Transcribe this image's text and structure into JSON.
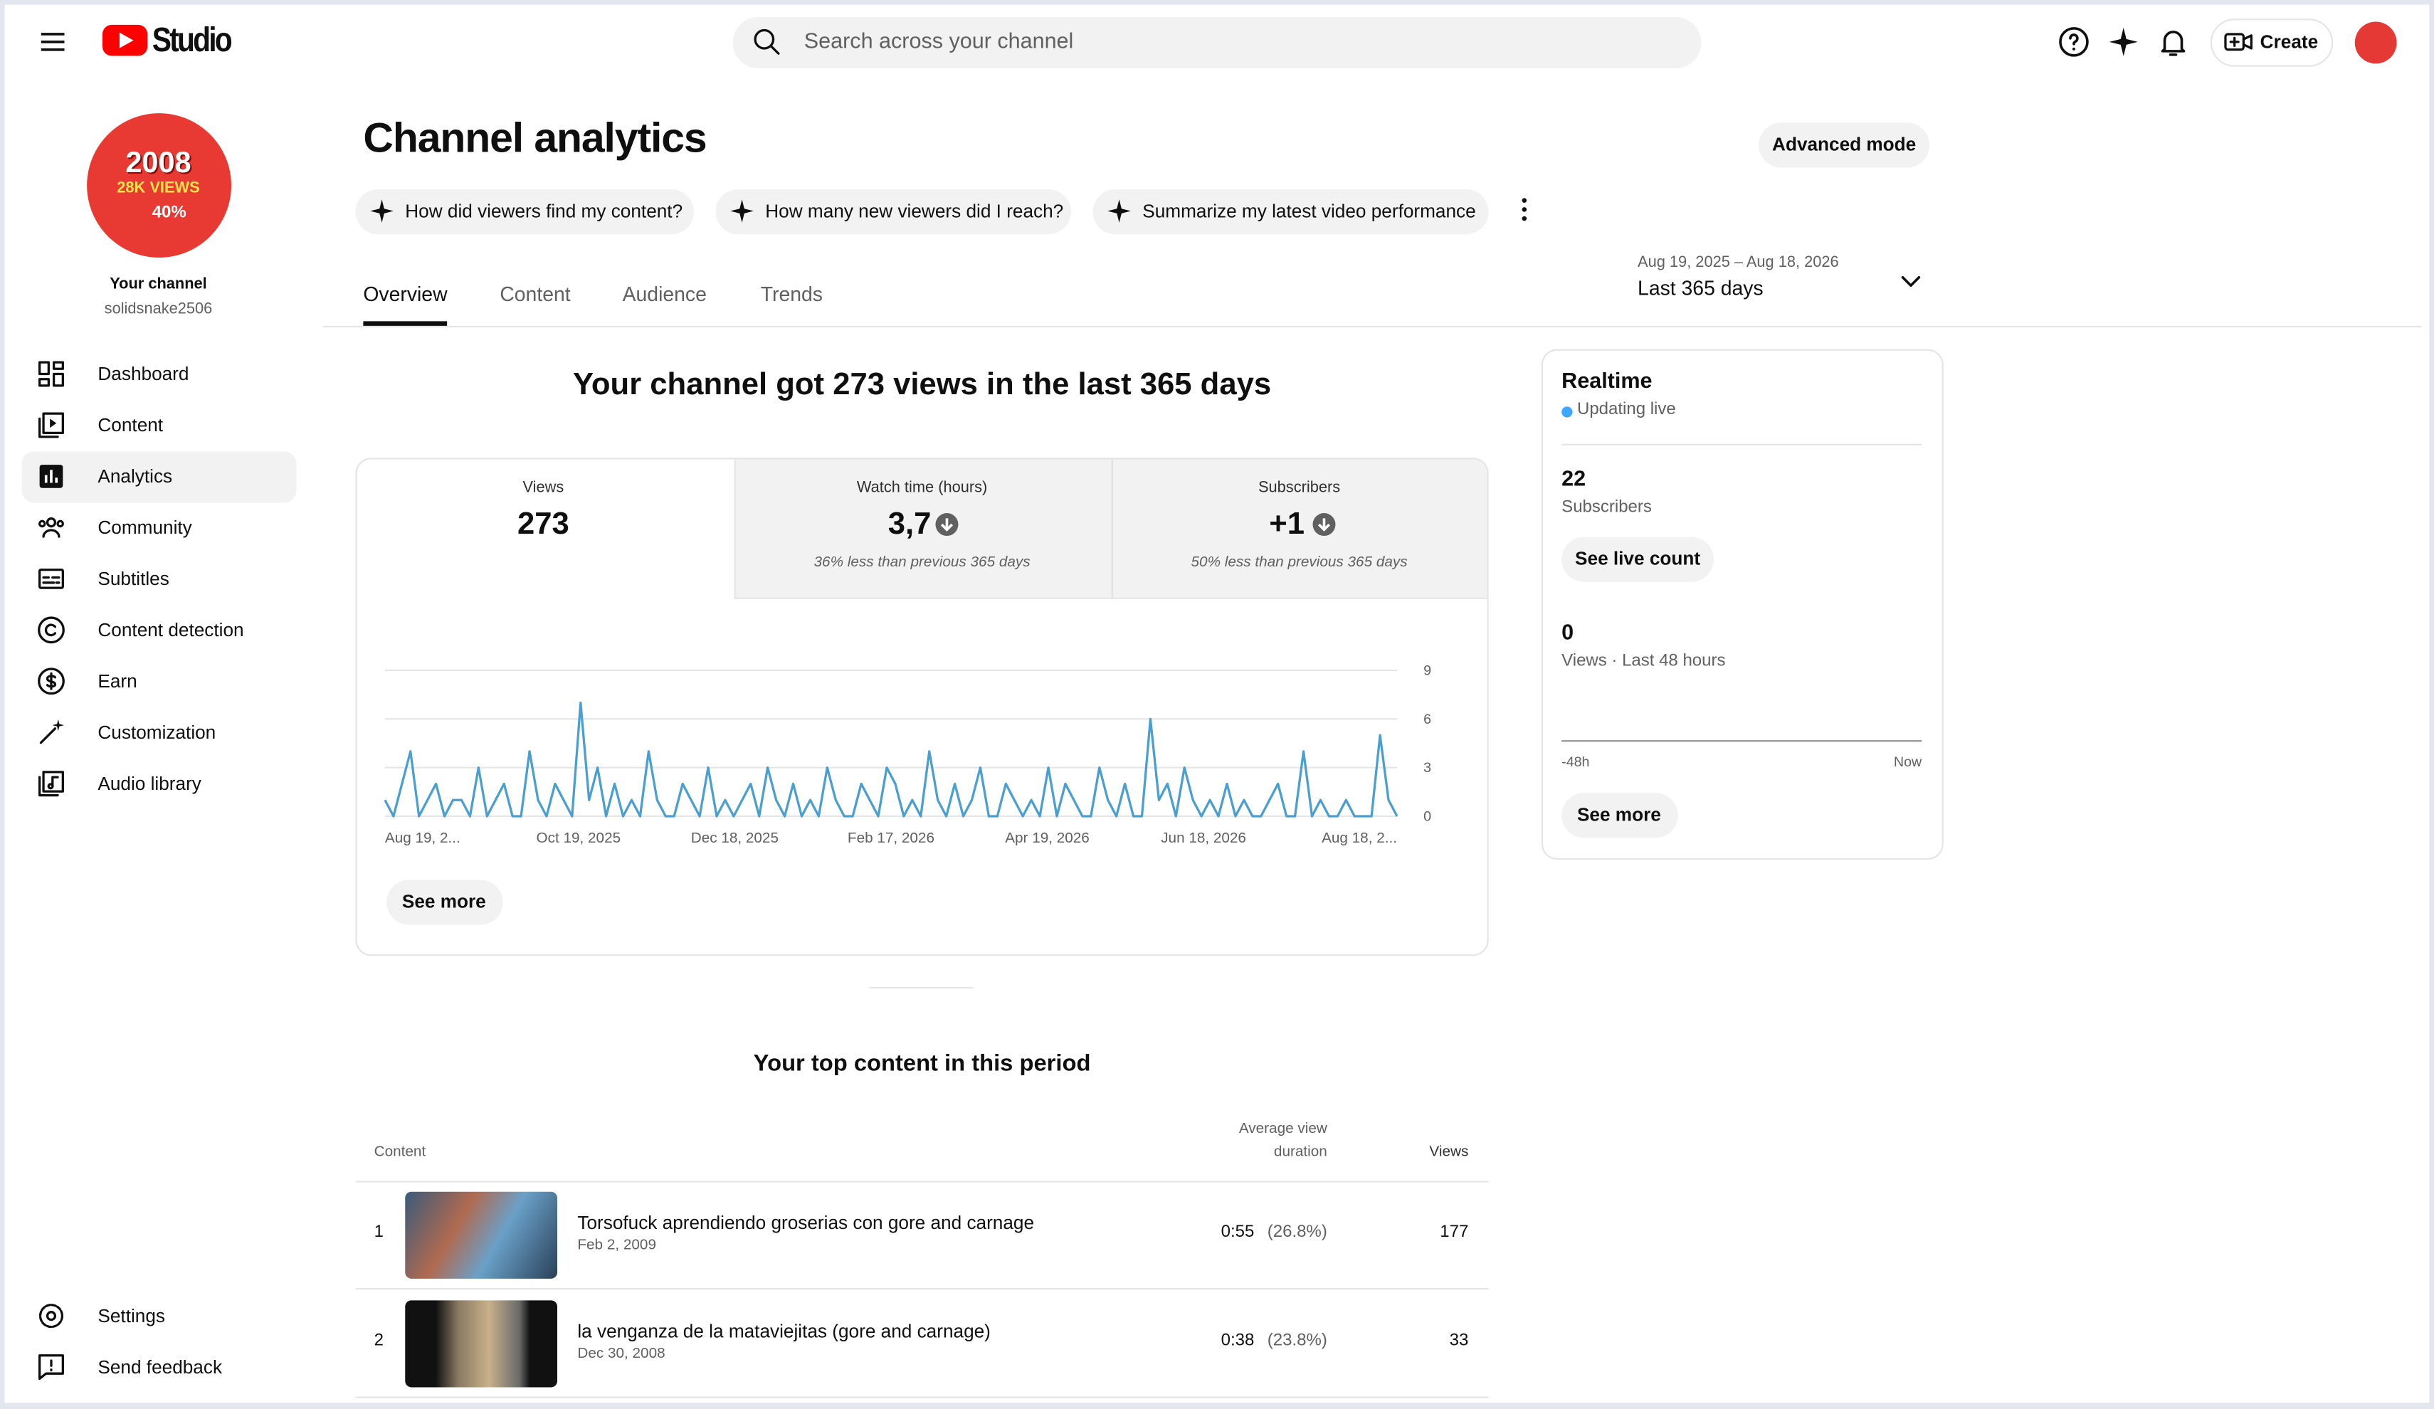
{
  "header": {
    "logo": "Studio",
    "search_placeholder": "Search across your channel",
    "create": "Create"
  },
  "sidebar": {
    "avatar": [
      "2008",
      "28K VIEWS",
      "40%"
    ],
    "channel_label": "Your channel",
    "channel_name": "solidsnake2506",
    "nav": [
      "Dashboard",
      "Content",
      "Analytics",
      "Community",
      "Subtitles",
      "Content detection",
      "Earn",
      "Customization",
      "Audio library"
    ],
    "bottom": [
      "Settings",
      "Send feedback"
    ]
  },
  "page": {
    "title": "Channel analytics",
    "advanced": "Advanced mode",
    "prompts": [
      "How did viewers find my content?",
      "How many new viewers did I reach?",
      "Summarize my latest video performance"
    ],
    "tabs": [
      "Overview",
      "Content",
      "Audience",
      "Trends"
    ],
    "date_range": "Aug 19, 2025 – Aug 18, 2026",
    "period": "Last 365 days"
  },
  "summary": {
    "headline": "Your channel got 273 views in the last 365 days",
    "cards": [
      {
        "label": "Views",
        "value": "273"
      },
      {
        "label": "Watch time (hours)",
        "value": "3,7",
        "note": "36% less than previous 365 days"
      },
      {
        "label": "Subscribers",
        "value": "+1",
        "note": "50% less than previous 365 days"
      }
    ],
    "see_more": "See more"
  },
  "chart_data": {
    "type": "line",
    "color": "#4a9fd0",
    "x_tick_labels": [
      "Aug 19, 2...",
      "Oct 19, 2025",
      "Dec 18, 2025",
      "Feb 17, 2026",
      "Apr 19, 2026",
      "Jun 18, 2026",
      "Aug 18, 2..."
    ],
    "values": [
      1,
      0,
      2,
      4,
      0,
      1,
      2,
      0,
      1,
      1,
      0,
      3,
      0,
      1,
      2,
      0,
      0,
      4,
      1,
      0,
      2,
      1,
      0,
      7,
      1,
      3,
      0,
      2,
      0,
      1,
      0,
      4,
      1,
      0,
      0,
      2,
      1,
      0,
      3,
      0,
      1,
      0,
      1,
      2,
      0,
      3,
      1,
      0,
      2,
      0,
      1,
      0,
      3,
      1,
      0,
      0,
      2,
      1,
      0,
      3,
      2,
      0,
      1,
      0,
      4,
      1,
      0,
      2,
      0,
      1,
      3,
      0,
      0,
      2,
      1,
      0,
      1,
      0,
      3,
      0,
      2,
      1,
      0,
      0,
      3,
      1,
      0,
      2,
      0,
      0,
      6,
      1,
      2,
      0,
      3,
      1,
      0,
      1,
      0,
      2,
      0,
      1,
      0,
      0,
      1,
      2,
      0,
      0,
      4,
      0,
      1,
      0,
      0,
      1,
      0,
      0,
      0,
      5,
      1,
      0
    ],
    "ylim": [
      0,
      9
    ],
    "yticks": [
      0,
      3,
      6,
      9
    ],
    "grid": true
  },
  "realtime": {
    "title": "Realtime",
    "status": "Updating live",
    "subscribers": "22",
    "subscribers_label": "Subscribers",
    "live_button": "See live count",
    "views": "0",
    "views_label": "Views · Last 48 hours",
    "axis_start": "-48h",
    "axis_end": "Now",
    "see_more": "See more"
  },
  "top_content": {
    "title": "Your top content in this period",
    "headers": [
      "Content",
      "Average view",
      "duration",
      "Views"
    ],
    "rows": [
      {
        "rank": "1",
        "title": "Torsofuck aprendiendo groserias con gore and carnage",
        "date": "Feb 2, 2009",
        "duration": "0:55",
        "percent": "(26.8%)",
        "views": "177"
      },
      {
        "rank": "2",
        "title": "la venganza de la mataviejitas (gore and carnage)",
        "date": "Dec 30, 2008",
        "duration": "0:38",
        "percent": "(23.8%)",
        "views": "33"
      }
    ]
  }
}
